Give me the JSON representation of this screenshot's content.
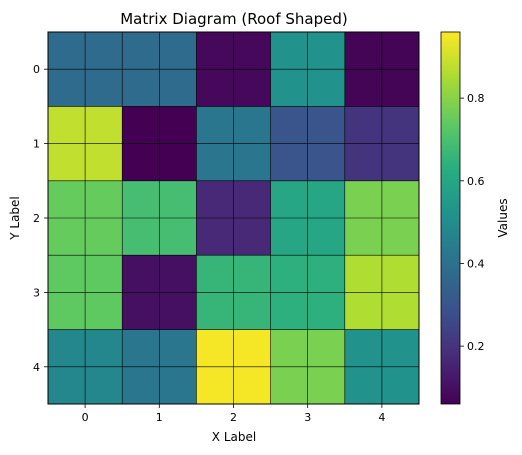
{
  "chart_data": {
    "type": "heatmap",
    "title": "Matrix Diagram (Roof Shaped)",
    "xlabel": "X Label",
    "ylabel": "Y Label",
    "x_categories": [
      "0",
      "1",
      "2",
      "3",
      "4"
    ],
    "y_categories": [
      "0",
      "1",
      "2",
      "3",
      "4"
    ],
    "values": [
      [
        0.38,
        0.38,
        0.08,
        0.52,
        0.07
      ],
      [
        0.88,
        0.06,
        0.42,
        0.3,
        0.2
      ],
      [
        0.75,
        0.69,
        0.17,
        0.6,
        0.78
      ],
      [
        0.74,
        0.1,
        0.66,
        0.64,
        0.86
      ],
      [
        0.48,
        0.42,
        0.95,
        0.78,
        0.52
      ]
    ],
    "colormap": "viridis",
    "value_range": [
      0.06,
      0.96
    ],
    "grid": true,
    "colorbar": {
      "label": "Values",
      "ticks": [
        "0.2",
        "0.4",
        "0.6",
        "0.8"
      ],
      "tick_values": [
        0.2,
        0.4,
        0.6,
        0.8
      ]
    }
  }
}
